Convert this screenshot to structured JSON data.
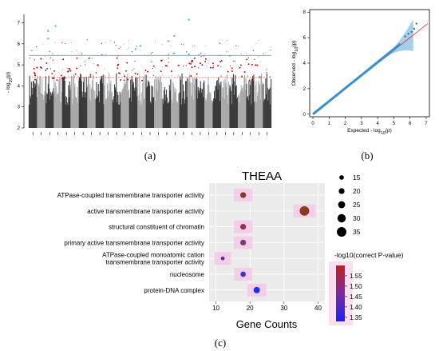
{
  "figure": {
    "panel_labels": [
      "(a)",
      "(b)",
      "(c)"
    ]
  },
  "colors": {
    "manhattan_dark": "#3a3a3a",
    "manhattan_light": "#a9a9a9",
    "suggestive_hit": "#cc0000",
    "significant_hit": "#2ab7d8",
    "significance_line": "#6b86a8",
    "suggestive_line": "#e35b5b",
    "qq_points": "#3a8fd0",
    "qq_band": "#9ccbe8",
    "qq_line": "#e03030",
    "panel_bg": "#ebebeb",
    "row_highlight": "#f6c9e8"
  },
  "chart_data": [
    {
      "type": "scatter",
      "panel": "(a)",
      "ylabel_prefix": "- log",
      "ylabel_sub": "10",
      "ylabel_suffix": "(p)",
      "ylim": [
        2,
        7.4
      ],
      "y_ticks": [
        "2",
        "3",
        "4",
        "5",
        "6",
        "7"
      ],
      "n_chromosomes": 29,
      "significance_threshold": 5.45,
      "suggestive_threshold": 4.4,
      "significant_points": [
        {
          "x": 0.08,
          "y": 6.62
        },
        {
          "x": 0.08,
          "y": 6.25
        },
        {
          "x": 0.11,
          "y": 6.85
        },
        {
          "x": 0.44,
          "y": 5.75
        },
        {
          "x": 0.46,
          "y": 5.9
        },
        {
          "x": 0.6,
          "y": 6.38
        },
        {
          "x": 0.66,
          "y": 7.15
        },
        {
          "x": 0.66,
          "y": 5.5
        },
        {
          "x": 0.6,
          "y": 5.55
        }
      ]
    },
    {
      "type": "scatter",
      "panel": "(b)",
      "xlabel_prefix": "Expected  - log",
      "xlabel_sub": "10",
      "xlabel_suffix": "(p)",
      "ylabel_prefix": "Observed  - log",
      "ylabel_sub": "10",
      "ylabel_suffix": "(p)",
      "xlim": [
        -0.2,
        7.2
      ],
      "ylim": [
        -0.2,
        8.2
      ],
      "x_ticks": [
        "0",
        "1",
        "2",
        "3",
        "4",
        "5",
        "6",
        "7"
      ],
      "y_ticks": [
        "0",
        "2",
        "4",
        "6",
        "8"
      ],
      "tail_points": [
        {
          "x": 5.7,
          "y": 6.1
        },
        {
          "x": 5.9,
          "y": 6.3
        },
        {
          "x": 6.1,
          "y": 6.45
        },
        {
          "x": 6.25,
          "y": 6.7
        },
        {
          "x": 6.4,
          "y": 7.1
        }
      ]
    },
    {
      "type": "scatter",
      "panel": "(c)",
      "title": "THEAA",
      "xlabel": "Gene Counts",
      "xlim": [
        8,
        42
      ],
      "x_ticks": [
        "10",
        "20",
        "30",
        "40"
      ],
      "categories": [
        "ATPase-coupled transmembrane transporter activity",
        "active transmembrane transporter activity",
        "structural constituent of chromatin",
        "primary active transmembrane transporter activity",
        "ATPase-coupled monoatomic cation transmembrane transporter activity",
        "nucleosome",
        "protein-DNA complex"
      ],
      "category_display": [
        [
          "ATPase-coupled transmembrane transporter activity"
        ],
        [
          "active transmembrane transporter activity"
        ],
        [
          "structural constituent of chromatin"
        ],
        [
          "primary active transmembrane transporter activity"
        ],
        [
          "ATPase-coupled monoatomic cation",
          "transmembrane transporter activity"
        ],
        [
          "nucleosome"
        ],
        [
          "protein-DNA complex"
        ]
      ],
      "points": [
        {
          "gene_count": 18,
          "size": 20,
          "neg_log10_correct_p": 1.6,
          "color": "#8b3a22"
        },
        {
          "gene_count": 36,
          "size": 35,
          "neg_log10_correct_p": 1.6,
          "color": "#8b3a22"
        },
        {
          "gene_count": 18,
          "size": 20,
          "neg_log10_correct_p": 1.55,
          "color": "#9b2f4e"
        },
        {
          "gene_count": 18,
          "size": 20,
          "neg_log10_correct_p": 1.45,
          "color": "#7d3a7a"
        },
        {
          "gene_count": 12,
          "size": 12,
          "neg_log10_correct_p": 1.4,
          "color": "#6a2aa0"
        },
        {
          "gene_count": 18,
          "size": 18,
          "neg_log10_correct_p": 1.37,
          "color": "#3f31d0"
        },
        {
          "gene_count": 22,
          "size": 22,
          "neg_log10_correct_p": 1.33,
          "color": "#1f2ef0"
        }
      ],
      "size_legend": {
        "values": [
          "15",
          "20",
          "25",
          "30",
          "35"
        ]
      },
      "color_legend": {
        "title": "-log10(correct P-value)",
        "ticks": [
          "1.55",
          "1.50",
          "1.45",
          "1.40",
          "1.35"
        ],
        "range": [
          1.33,
          1.6
        ]
      }
    }
  ]
}
